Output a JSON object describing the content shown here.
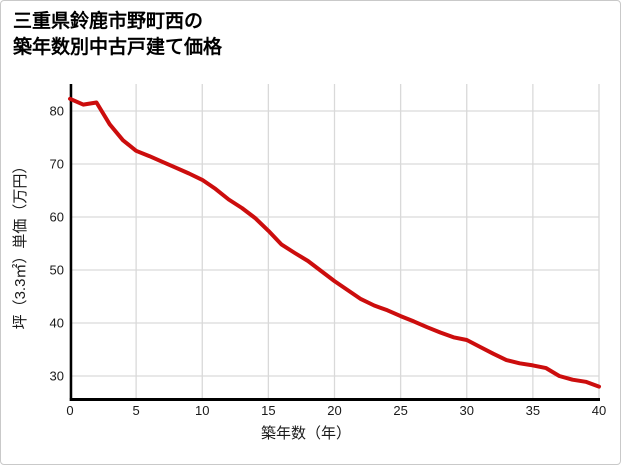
{
  "title": {
    "line1": "三重県鈴鹿市野町西の",
    "line2": "築年数別中古戸建て価格"
  },
  "colors": {
    "line": "#cc0d0d",
    "grid": "#d9d9d9",
    "axis": "#000000",
    "text": "#1a1a1a",
    "border": "#c9c9c9",
    "background": "#ffffff"
  },
  "chart_data": {
    "type": "line",
    "title": "三重県鈴鹿市野町西の築年数別中古戸建て価格",
    "xlabel": "築年数（年）",
    "ylabel": "坪（3.3㎡）単価（万円）",
    "x": [
      0,
      1,
      2,
      3,
      4,
      5,
      6,
      7,
      8,
      9,
      10,
      11,
      12,
      13,
      14,
      15,
      16,
      17,
      18,
      19,
      20,
      21,
      22,
      23,
      24,
      25,
      26,
      27,
      28,
      29,
      30,
      31,
      32,
      33,
      34,
      35,
      36,
      37,
      38,
      39,
      40
    ],
    "values": [
      82.3,
      81.2,
      81.6,
      77.5,
      74.5,
      72.5,
      71.5,
      70.4,
      69.3,
      68.2,
      67.0,
      65.3,
      63.3,
      61.7,
      59.8,
      57.4,
      54.8,
      53.2,
      51.7,
      49.8,
      47.9,
      46.2,
      44.5,
      43.3,
      42.4,
      41.3,
      40.3,
      39.2,
      38.2,
      37.3,
      36.8,
      35.5,
      34.2,
      33.0,
      32.4,
      32.0,
      31.5,
      30.0,
      29.3,
      28.9,
      28.0
    ],
    "xticks": [
      0,
      5,
      10,
      15,
      20,
      25,
      30,
      35,
      40
    ],
    "yticks": [
      30,
      40,
      50,
      60,
      70,
      80
    ],
    "xlim": [
      0,
      40
    ],
    "ylim": [
      25.3,
      85.1
    ],
    "grid": true,
    "legend": "none"
  }
}
